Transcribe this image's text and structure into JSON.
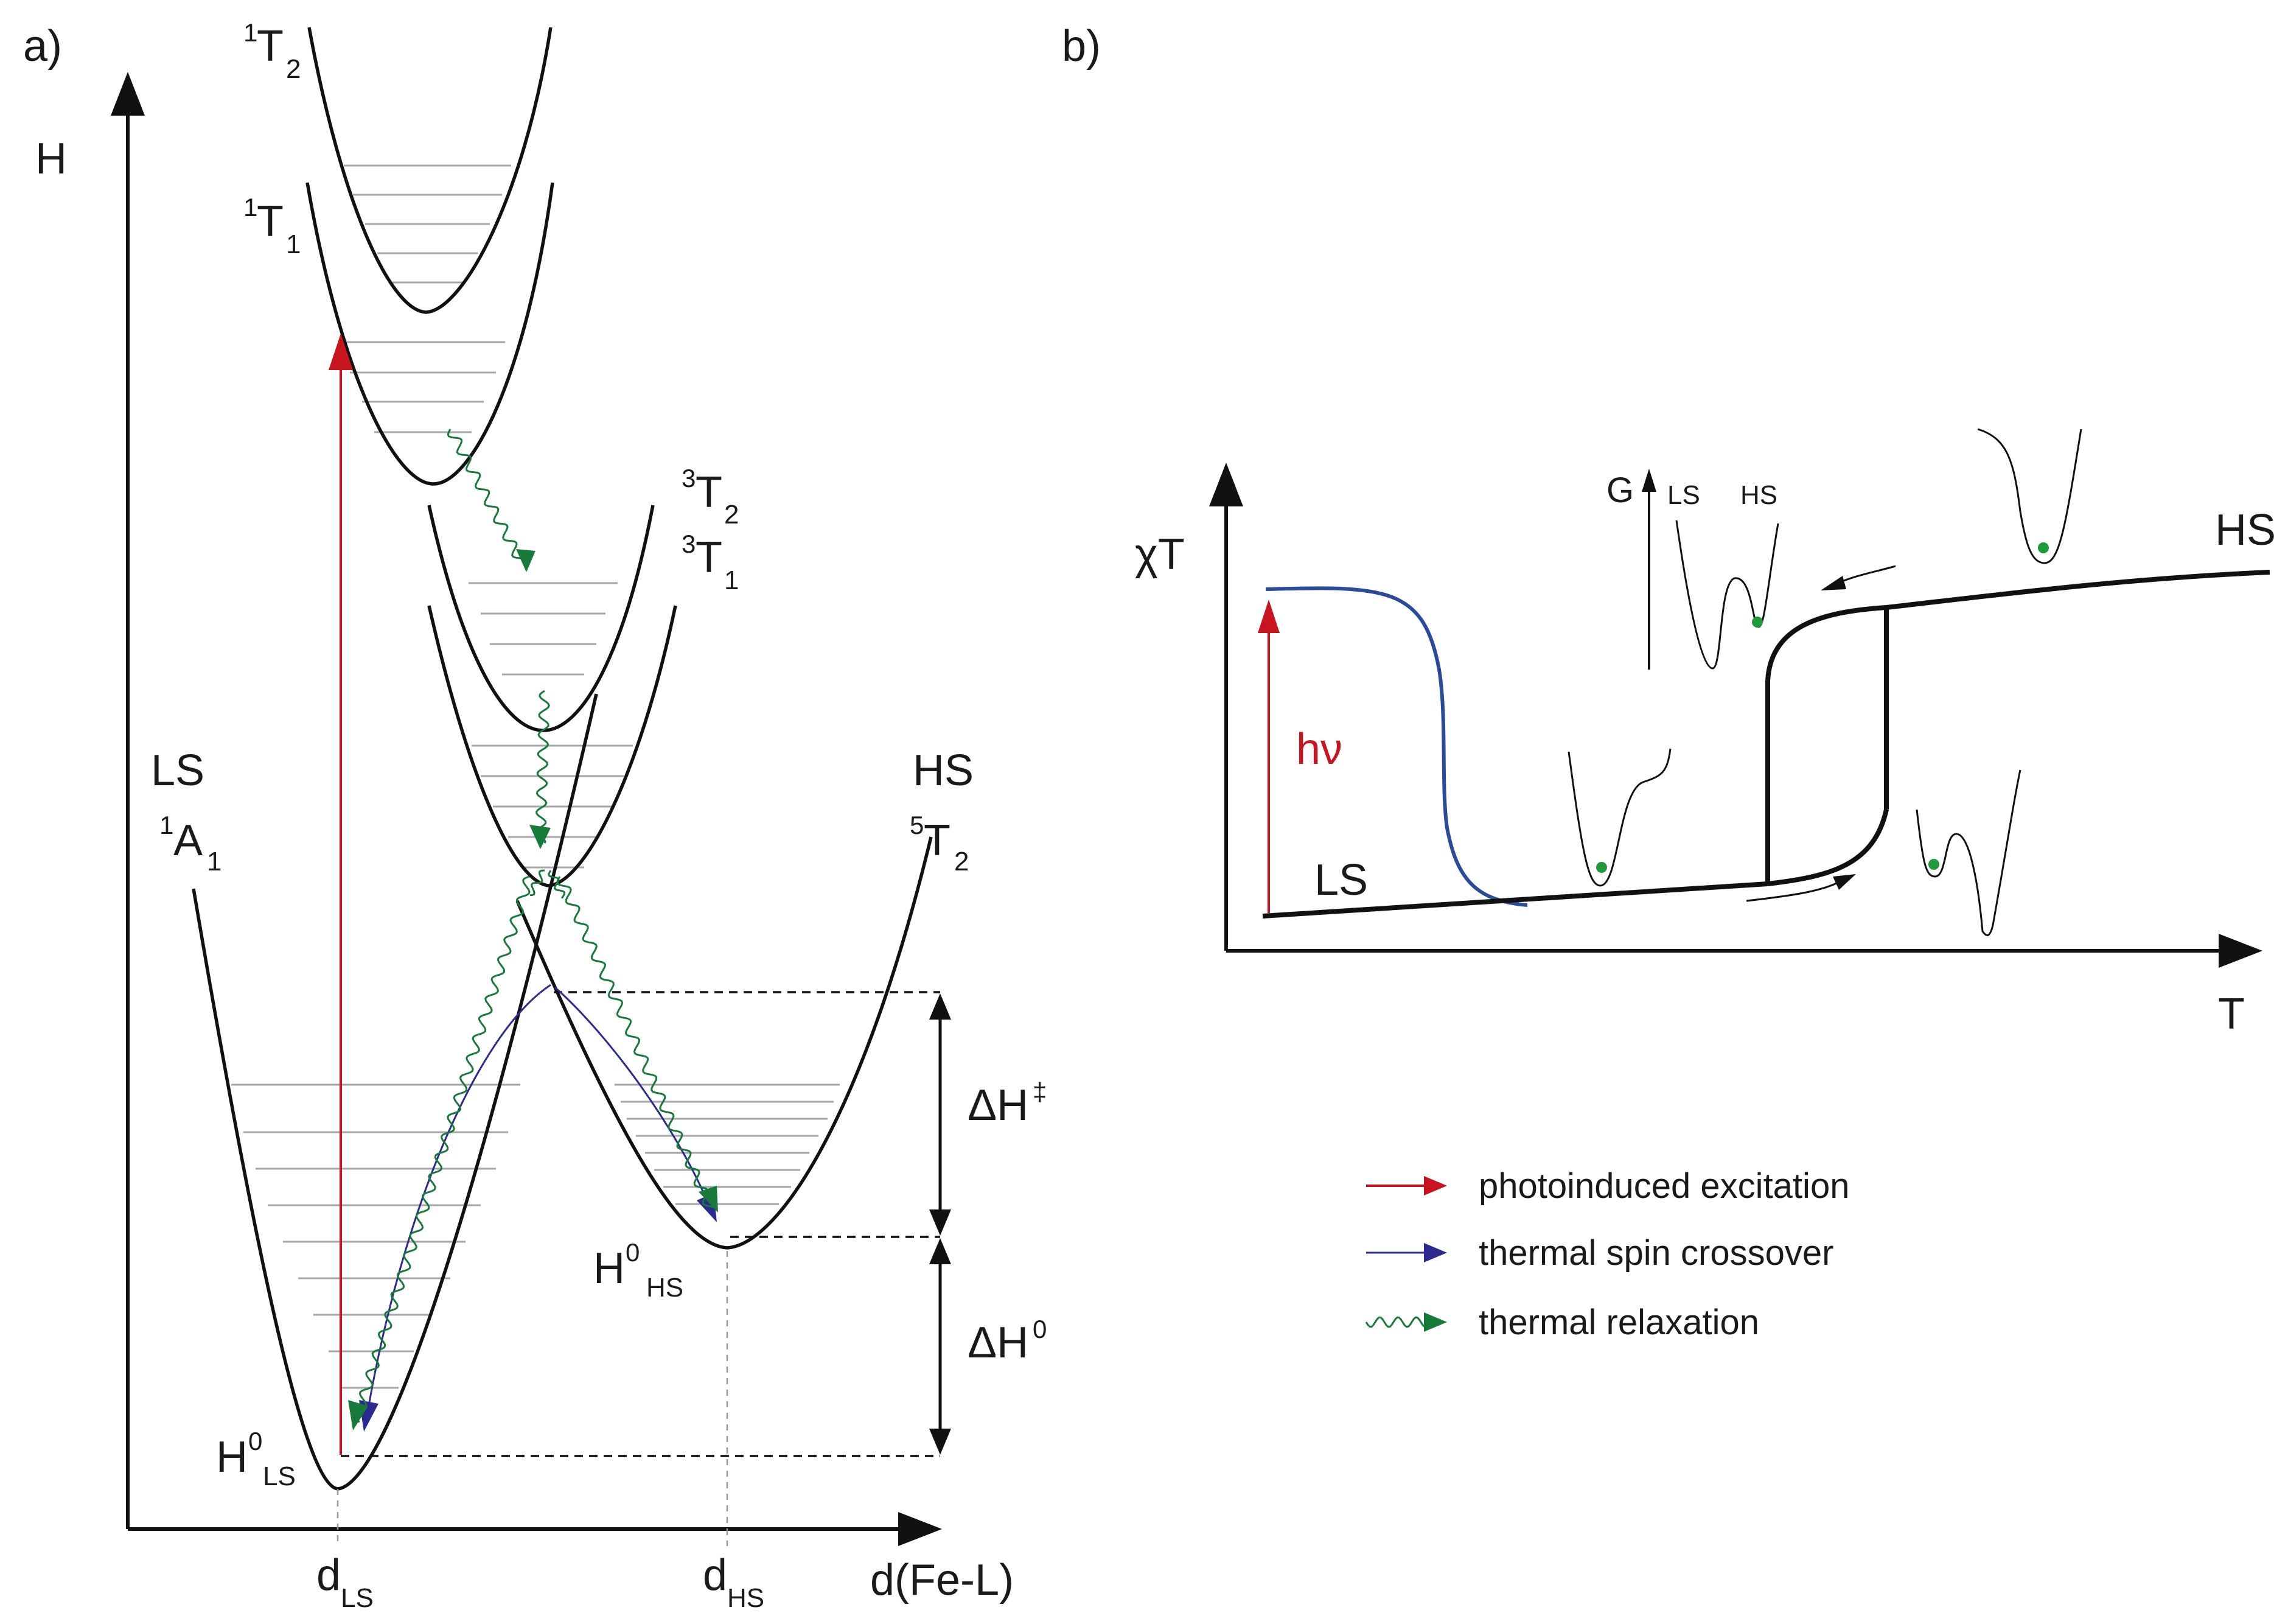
{
  "panel_a": {
    "label": "a)",
    "y_axis": "H",
    "x_axis": "d(Fe-L)",
    "d_ls": {
      "main": "d",
      "sub": "LS"
    },
    "d_hs": {
      "main": "d",
      "sub": "HS"
    },
    "ls_state": {
      "name": "LS",
      "sup": "1",
      "main": "A",
      "sub": "1"
    },
    "hs_state": {
      "name": "HS",
      "sup": "5",
      "main": "T",
      "sub": "2"
    },
    "t2_singlet": {
      "sup": "1",
      "main": "T",
      "sub": "2"
    },
    "t1_singlet": {
      "sup": "1",
      "main": "T",
      "sub": "1"
    },
    "t2_triplet": {
      "sup": "3",
      "main": "T",
      "sub": "2"
    },
    "t1_triplet": {
      "sup": "3",
      "main": "T",
      "sub": "1"
    },
    "h0_ls": {
      "main": "H",
      "sup": "0",
      "sub": "LS"
    },
    "h0_hs": {
      "main": "H",
      "sup": "0",
      "sub": "HS"
    },
    "delta_h_barrier": {
      "main": "ΔH",
      "sup": "‡"
    },
    "delta_h0": {
      "main": "ΔH",
      "sup": "0"
    }
  },
  "panel_b": {
    "label": "b)",
    "y_axis": "χT",
    "x_axis": "T",
    "hv": "hν",
    "ls": "LS",
    "hs": "HS",
    "inset_g": "G",
    "inset_ls": "LS",
    "inset_hs": "HS"
  },
  "legend": {
    "photo": "photoinduced excitation",
    "thermal_sco": "thermal spin crossover",
    "thermal_relax": "thermal relaxation"
  },
  "colors": {
    "photo": "#c8141e",
    "thermal_sco": "#2b2a8f",
    "thermal_relax": "#187a3a",
    "liesst_curve": "#2a4a9a",
    "population_dot": "#1f9a3a"
  }
}
